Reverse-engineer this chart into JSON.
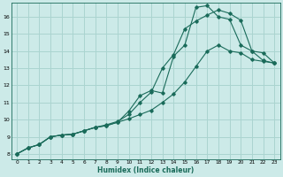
{
  "xlabel": "Humidex (Indice chaleur)",
  "bg_color": "#cceae8",
  "grid_color": "#aad4d0",
  "line_color": "#1a6b5a",
  "xlim": [
    -0.5,
    23.5
  ],
  "ylim": [
    7.7,
    16.8
  ],
  "xticks": [
    0,
    1,
    2,
    3,
    4,
    5,
    6,
    7,
    8,
    9,
    10,
    11,
    12,
    13,
    14,
    15,
    16,
    17,
    18,
    19,
    20,
    21,
    22,
    23
  ],
  "yticks": [
    8,
    9,
    10,
    11,
    12,
    13,
    14,
    15,
    16
  ],
  "line1_x": [
    0,
    1,
    2,
    3,
    4,
    5,
    6,
    7,
    8,
    9,
    10,
    11,
    12,
    13,
    14,
    15,
    16,
    17,
    18,
    19,
    20,
    21,
    22,
    23
  ],
  "line1_y": [
    8.0,
    8.35,
    8.55,
    9.0,
    9.1,
    9.15,
    9.35,
    9.55,
    9.65,
    9.85,
    10.05,
    10.3,
    10.55,
    11.0,
    11.5,
    12.2,
    13.1,
    14.0,
    14.35,
    14.0,
    13.9,
    13.5,
    13.4,
    13.3
  ],
  "line2_x": [
    0,
    1,
    2,
    3,
    4,
    5,
    6,
    7,
    8,
    9,
    10,
    11,
    12,
    13,
    14,
    15,
    16,
    17,
    18,
    19,
    20,
    21,
    22,
    23
  ],
  "line2_y": [
    8.0,
    8.35,
    8.55,
    9.0,
    9.1,
    9.15,
    9.35,
    9.55,
    9.7,
    9.9,
    10.3,
    11.0,
    11.6,
    13.0,
    13.8,
    15.3,
    15.75,
    16.1,
    16.4,
    16.2,
    15.8,
    14.0,
    13.45,
    13.3
  ],
  "line3_x": [
    0,
    1,
    2,
    3,
    4,
    5,
    6,
    7,
    8,
    9,
    10,
    11,
    12,
    13,
    14,
    15,
    16,
    17,
    18,
    19,
    20,
    21,
    22,
    23
  ],
  "line3_y": [
    8.0,
    8.35,
    8.55,
    9.0,
    9.1,
    9.15,
    9.35,
    9.55,
    9.65,
    9.85,
    10.5,
    11.4,
    11.7,
    11.55,
    13.7,
    14.35,
    16.55,
    16.65,
    16.0,
    15.85,
    14.35,
    14.0,
    13.9,
    13.3
  ]
}
